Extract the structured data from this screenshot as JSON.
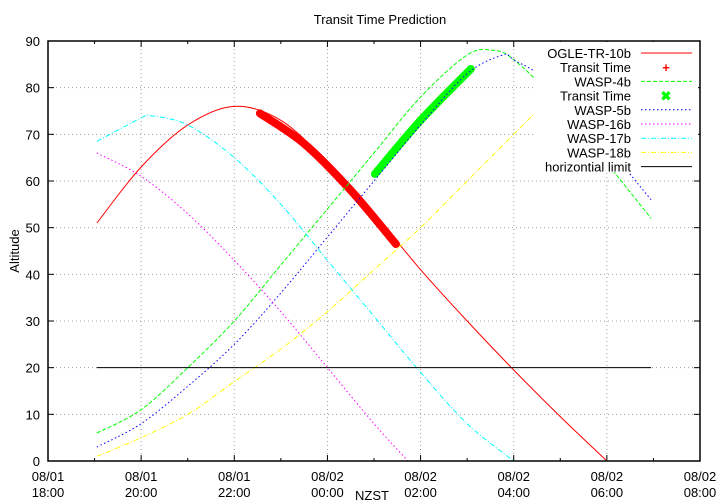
{
  "chart_data": {
    "type": "line",
    "title": "Transit Time Prediction",
    "xlabel": "NZST",
    "ylabel": "Altitude",
    "ylim": [
      0,
      90
    ],
    "yticks": [
      "0",
      "10",
      "20",
      "30",
      "40",
      "50",
      "60",
      "70",
      "80",
      "90"
    ],
    "xticks": [
      {
        "date": "08/01",
        "time": "18:00"
      },
      {
        "date": "08/01",
        "time": "20:00"
      },
      {
        "date": "08/01",
        "time": "22:00"
      },
      {
        "date": "08/02",
        "time": "00:00"
      },
      {
        "date": "08/02",
        "time": "02:00"
      },
      {
        "date": "08/02",
        "time": "04:00"
      },
      {
        "date": "08/02",
        "time": "06:00"
      },
      {
        "date": "08/02",
        "time": "08:00"
      }
    ],
    "grid": true,
    "legend_position": "top-right",
    "series": [
      {
        "name": "OGLE-TR-10b",
        "color": "#ff0000",
        "style": "solid",
        "hours": [
          1.05,
          2,
          3,
          4,
          5,
          6,
          7,
          8,
          9,
          10,
          11,
          12
        ],
        "values": [
          51,
          63,
          72,
          76,
          73,
          64,
          53,
          41,
          30,
          19.5,
          9.5,
          0
        ]
      },
      {
        "name": "Transit Time",
        "color": "#ff0000",
        "style": "thick",
        "hours": [
          4.55,
          5.5,
          6.5,
          7.47
        ],
        "values": [
          74.5,
          68,
          58,
          46.5
        ]
      },
      {
        "name": "WASP-4b",
        "color": "#00ff00",
        "style": "dashed",
        "hours": [
          1.05,
          2,
          3,
          4,
          5,
          6,
          7,
          8,
          9,
          9.55,
          10,
          11,
          12.95
        ],
        "values": [
          6,
          11,
          20,
          30,
          42,
          54,
          66,
          78,
          87,
          88,
          86,
          76,
          52
        ]
      },
      {
        "name": "Transit Time",
        "color": "#00ff00",
        "style": "thick",
        "hours": [
          7.02,
          8,
          9.08
        ],
        "values": [
          61.5,
          73,
          84
        ]
      },
      {
        "name": "WASP-5b",
        "color": "#0000ff",
        "style": "dotted",
        "hours": [
          1.05,
          2,
          3,
          4,
          5,
          6,
          7,
          8,
          9,
          9.77,
          10,
          11,
          12.95
        ],
        "values": [
          3,
          8,
          16,
          25,
          36,
          48,
          60,
          72,
          83,
          87,
          86,
          79,
          56
        ]
      },
      {
        "name": "WASP-16b",
        "color": "#ff00ff",
        "style": "dotted",
        "hours": [
          1.05,
          2,
          3,
          4,
          5,
          6,
          7,
          7.73
        ],
        "values": [
          66,
          61,
          53,
          43,
          32,
          20,
          8,
          0
        ]
      },
      {
        "name": "WASP-17b",
        "color": "#00ffff",
        "style": "dashdot",
        "hours": [
          1.05,
          2,
          2.2,
          3,
          4,
          5,
          6,
          7,
          8,
          9,
          10.0
        ],
        "values": [
          68.5,
          73.5,
          74,
          72,
          65,
          55,
          43,
          31,
          19,
          8,
          0
        ]
      },
      {
        "name": "WASP-18b",
        "color": "#ffff00",
        "style": "dashdot",
        "hours": [
          1.05,
          2,
          3,
          4,
          5,
          6,
          7,
          8,
          9,
          10,
          11,
          11.7
        ],
        "values": [
          1,
          5,
          10,
          17,
          24,
          32,
          41,
          50,
          60,
          70,
          80,
          87
        ]
      },
      {
        "name": "horizontial limit",
        "color": "#000000",
        "style": "solid",
        "hours": [
          1.05,
          12.95
        ],
        "values": [
          20,
          20
        ]
      }
    ]
  },
  "legend": [
    {
      "label": "OGLE-TR-10b"
    },
    {
      "label": "Transit Time"
    },
    {
      "label": "WASP-4b"
    },
    {
      "label": "Transit Time"
    },
    {
      "label": "WASP-5b"
    },
    {
      "label": "WASP-16b"
    },
    {
      "label": "WASP-17b"
    },
    {
      "label": "WASP-18b"
    },
    {
      "label": "horizontial limit"
    }
  ]
}
